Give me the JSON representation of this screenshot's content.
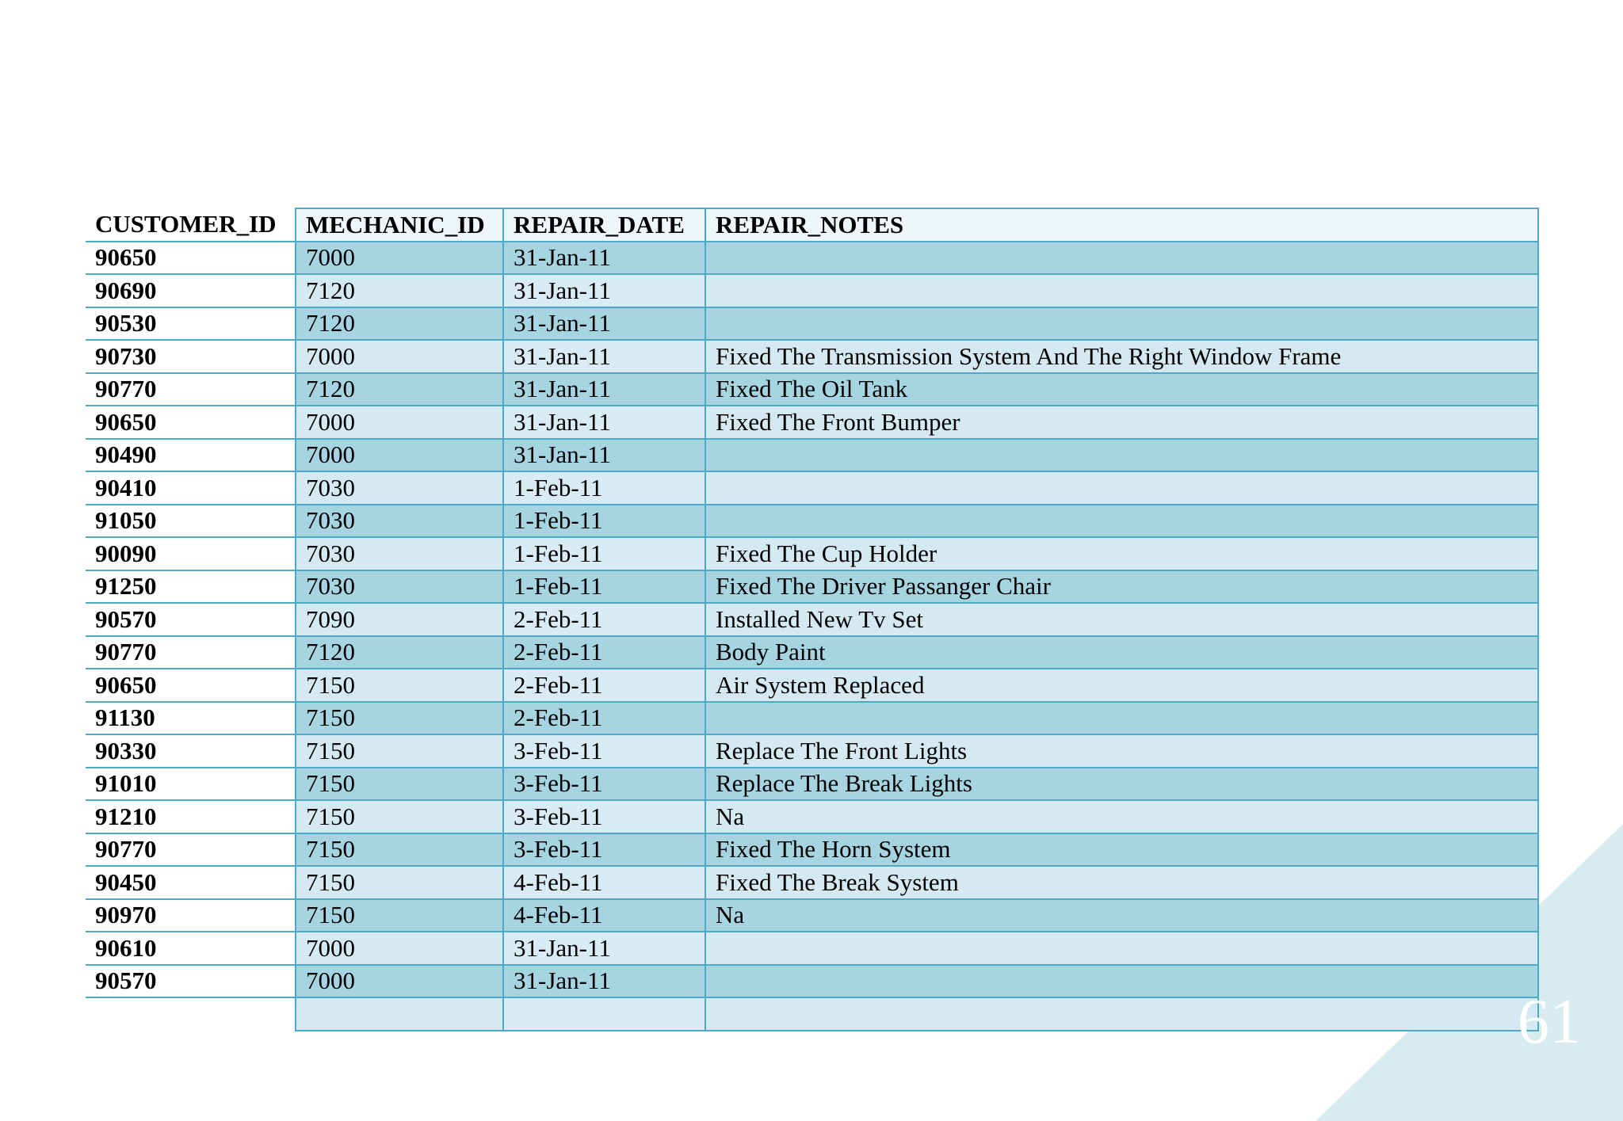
{
  "colors": {
    "accent_light": "#d4e9f1",
    "accent_mid": "#a6d4e1",
    "border": "#4eaac4",
    "corner_triangle": "#d7ebf1",
    "page_number_text": "#ffffff"
  },
  "table": {
    "columns": [
      "CUSTOMER_ID",
      "MECHANIC_ID",
      "REPAIR_DATE",
      "REPAIR_NOTES"
    ],
    "rows": [
      [
        "90650",
        "7000",
        "31-Jan-11",
        ""
      ],
      [
        "90690",
        "7120",
        "31-Jan-11",
        ""
      ],
      [
        "90530",
        "7120",
        "31-Jan-11",
        ""
      ],
      [
        "90730",
        "7000",
        "31-Jan-11",
        "Fixed The Transmission System And The Right Window Frame"
      ],
      [
        "90770",
        "7120",
        "31-Jan-11",
        "Fixed The Oil Tank"
      ],
      [
        "90650",
        "7000",
        "31-Jan-11",
        "Fixed The Front Bumper"
      ],
      [
        "90490",
        "7000",
        "31-Jan-11",
        ""
      ],
      [
        "90410",
        "7030",
        "1-Feb-11",
        ""
      ],
      [
        "91050",
        "7030",
        "1-Feb-11",
        ""
      ],
      [
        "90090",
        "7030",
        "1-Feb-11",
        "Fixed The Cup Holder"
      ],
      [
        "91250",
        "7030",
        "1-Feb-11",
        "Fixed The Driver Passanger Chair"
      ],
      [
        "90570",
        "7090",
        "2-Feb-11",
        "Installed New Tv Set"
      ],
      [
        "90770",
        "7120",
        "2-Feb-11",
        "Body Paint"
      ],
      [
        "90650",
        "7150",
        "2-Feb-11",
        "Air System Replaced"
      ],
      [
        "91130",
        "7150",
        "2-Feb-11",
        ""
      ],
      [
        "90330",
        "7150",
        "3-Feb-11",
        "Replace The Front Lights"
      ],
      [
        "91010",
        "7150",
        "3-Feb-11",
        "Replace The Break Lights"
      ],
      [
        "91210",
        "7150",
        "3-Feb-11",
        "Na"
      ],
      [
        "90770",
        "7150",
        "3-Feb-11",
        "Fixed The Horn System"
      ],
      [
        "90450",
        "7150",
        "4-Feb-11",
        "Fixed The Break System"
      ],
      [
        "90970",
        "7150",
        "4-Feb-11",
        "Na"
      ],
      [
        "90610",
        "7000",
        "31-Jan-11",
        ""
      ],
      [
        "90570",
        "7000",
        "31-Jan-11",
        ""
      ],
      [
        "",
        "",
        "",
        ""
      ]
    ]
  },
  "page_number": "61"
}
